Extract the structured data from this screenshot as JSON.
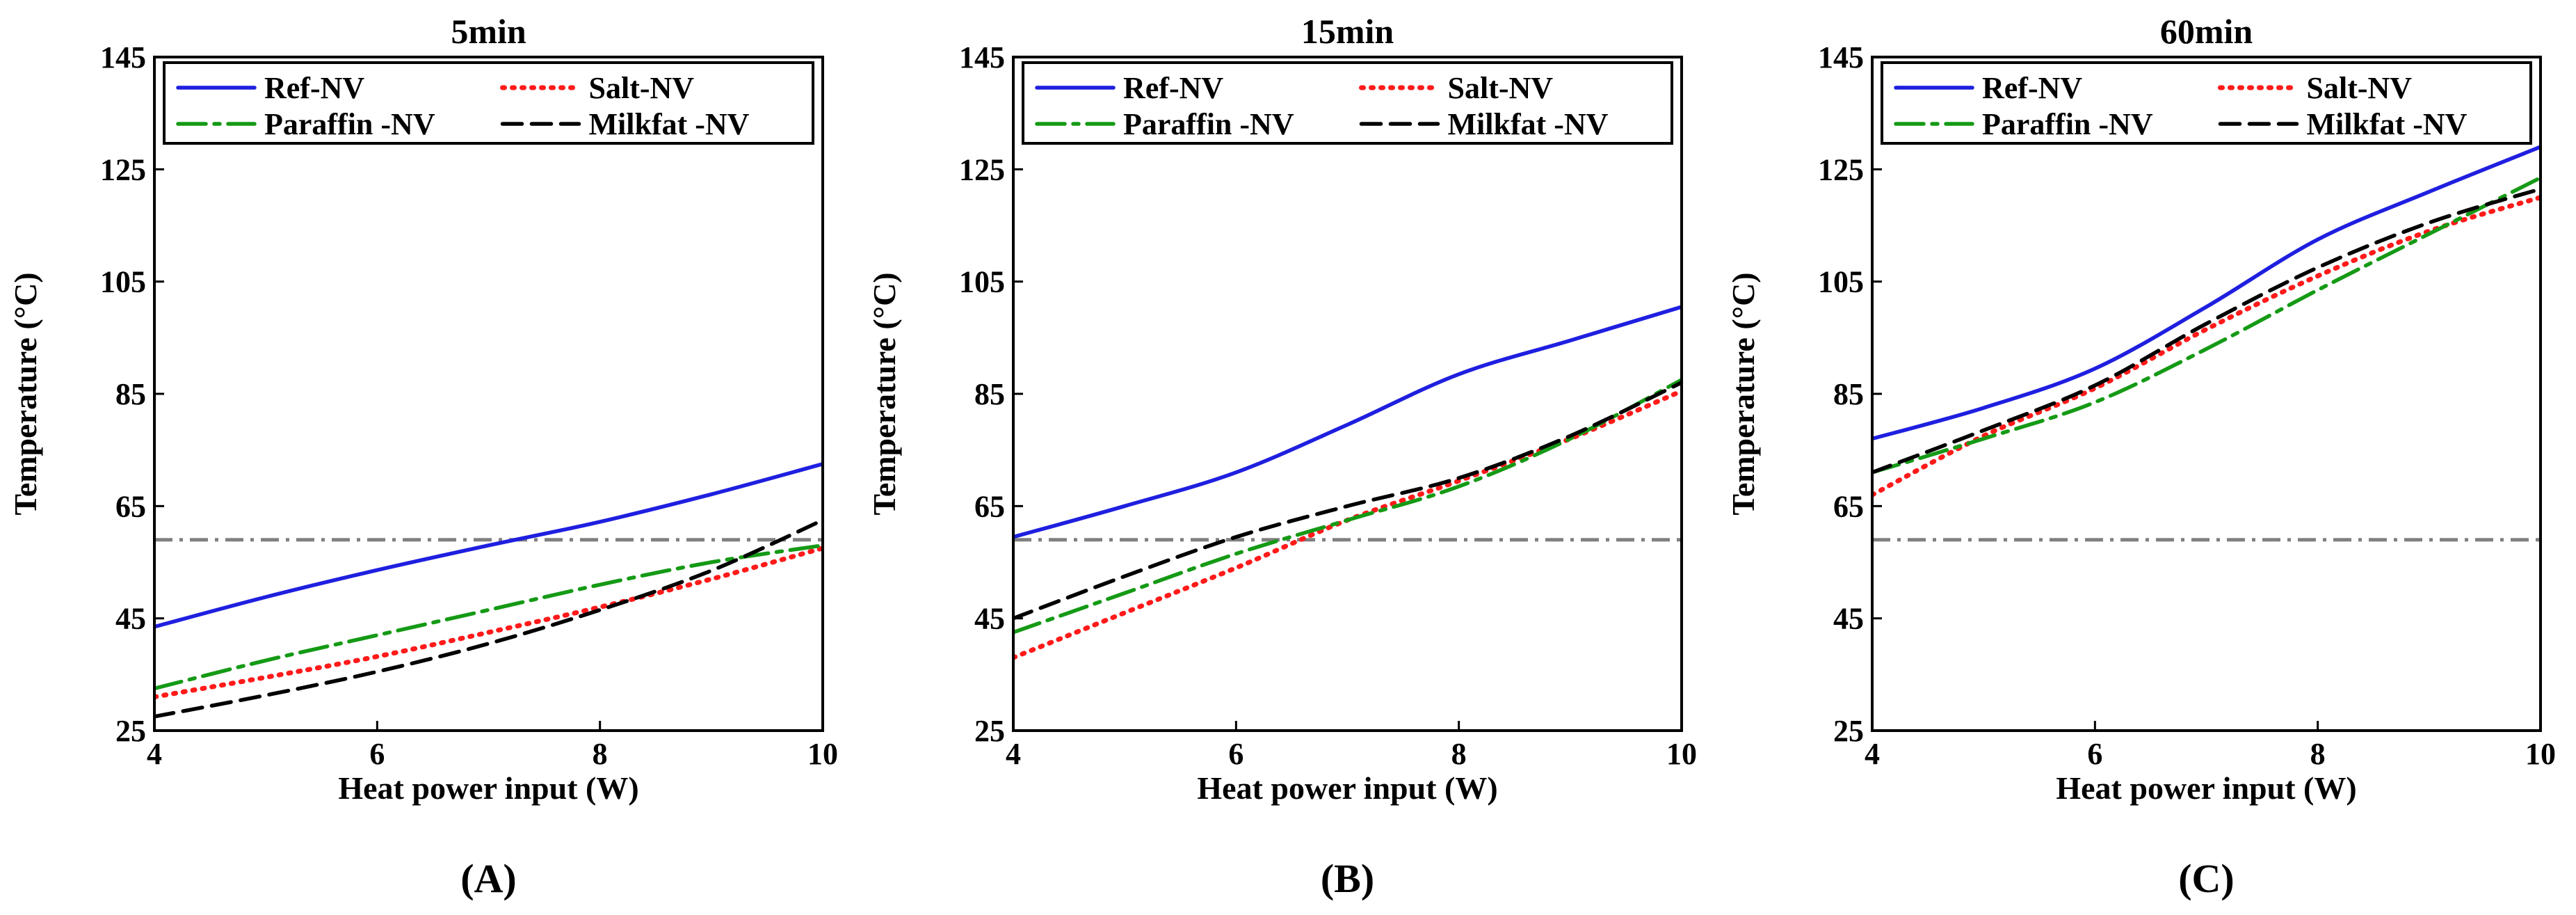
{
  "chart_data": [
    {
      "type": "line",
      "title": "5min",
      "panel_label": "(A)",
      "xlabel": "Heat power input (W)",
      "ylabel": "Temperature (°C)",
      "xlim": [
        4,
        10
      ],
      "ylim": [
        25,
        145
      ],
      "xticks": [
        4,
        6,
        8,
        10
      ],
      "yticks": [
        25,
        45,
        65,
        85,
        105,
        125,
        145
      ],
      "reference_line": {
        "y": 59,
        "color": "#808080",
        "style": "dash-dot"
      },
      "legend": {
        "placement": "top",
        "columns": 2
      },
      "series": [
        {
          "name": "Ref-NV",
          "color": "#1f1fe0",
          "dash": "solid",
          "x": [
            4,
            5,
            6,
            7,
            8,
            9,
            10
          ],
          "values": [
            43.5,
            48.8,
            53.6,
            58.0,
            62.2,
            67.1,
            72.5
          ]
        },
        {
          "name": "Salt-NV",
          "color": "#ff1a1a",
          "dash": "dotted",
          "x": [
            4,
            5,
            6,
            7,
            8,
            9,
            10
          ],
          "values": [
            31.0,
            34.5,
            38.2,
            42.5,
            47.0,
            52.0,
            57.5
          ]
        },
        {
          "name": "Paraffin -NV",
          "color": "#159a15",
          "dash": "dashdot",
          "x": [
            4,
            5,
            6,
            7,
            8,
            9,
            10
          ],
          "values": [
            32.5,
            37.5,
            42.0,
            46.5,
            51.0,
            55.0,
            58.0
          ]
        },
        {
          "name": "Milkfat -NV",
          "color": "#000000",
          "dash": "dashed",
          "x": [
            4,
            5,
            6,
            7,
            8,
            9,
            10
          ],
          "values": [
            27.5,
            31.3,
            35.5,
            40.5,
            46.5,
            53.5,
            62.5
          ]
        }
      ]
    },
    {
      "type": "line",
      "title": "15min",
      "panel_label": "(B)",
      "xlabel": "Heat power input (W)",
      "ylabel": "Temperature (°C)",
      "xlim": [
        4,
        10
      ],
      "ylim": [
        25,
        145
      ],
      "xticks": [
        4,
        6,
        8,
        10
      ],
      "yticks": [
        25,
        45,
        65,
        85,
        105,
        125,
        145
      ],
      "reference_line": {
        "y": 59,
        "color": "#808080",
        "style": "dash-dot"
      },
      "legend": {
        "placement": "top",
        "columns": 2
      },
      "series": [
        {
          "name": "Ref-NV",
          "color": "#1f1fe0",
          "dash": "solid",
          "x": [
            4,
            5,
            6,
            7,
            8,
            9,
            10
          ],
          "values": [
            59.5,
            65.0,
            71.0,
            79.5,
            88.5,
            94.5,
            100.5
          ]
        },
        {
          "name": "Salt-NV",
          "color": "#ff1a1a",
          "dash": "dotted",
          "x": [
            4,
            5,
            6,
            7,
            8,
            9,
            10
          ],
          "values": [
            38.0,
            46.0,
            54.0,
            62.5,
            69.5,
            77.0,
            85.5
          ]
        },
        {
          "name": "Paraffin -NV",
          "color": "#159a15",
          "dash": "dashdot",
          "x": [
            4,
            5,
            6,
            7,
            8,
            9,
            10
          ],
          "values": [
            42.5,
            49.5,
            56.5,
            62.5,
            68.5,
            77.0,
            87.5
          ]
        },
        {
          "name": "Milkfat -NV",
          "color": "#000000",
          "dash": "dashed",
          "x": [
            4,
            5,
            6,
            7,
            8,
            9,
            10
          ],
          "values": [
            45.0,
            52.5,
            59.5,
            65.0,
            70.0,
            77.5,
            87.0
          ]
        }
      ]
    },
    {
      "type": "line",
      "title": "60min",
      "panel_label": "(C)",
      "xlabel": "Heat power input (W)",
      "ylabel": "Temperature (°C)",
      "xlim": [
        4,
        10
      ],
      "ylim": [
        25,
        145
      ],
      "xticks": [
        4,
        6,
        8,
        10
      ],
      "yticks": [
        25,
        45,
        65,
        85,
        105,
        125,
        145
      ],
      "reference_line": {
        "y": 59,
        "color": "#808080",
        "style": "dash-dot"
      },
      "legend": {
        "placement": "top",
        "columns": 2
      },
      "series": [
        {
          "name": "Ref-NV",
          "color": "#1f1fe0",
          "dash": "solid",
          "x": [
            4,
            5,
            6,
            7,
            8,
            9,
            10
          ],
          "values": [
            77.0,
            82.5,
            89.5,
            100.5,
            112.5,
            121.0,
            129.0
          ]
        },
        {
          "name": "Salt-NV",
          "color": "#ff1a1a",
          "dash": "dotted",
          "x": [
            4,
            5,
            6,
            7,
            8,
            9,
            10
          ],
          "values": [
            67.0,
            77.5,
            86.0,
            96.5,
            106.0,
            114.0,
            120.0
          ]
        },
        {
          "name": "Paraffin -NV",
          "color": "#159a15",
          "dash": "dashdot",
          "x": [
            4,
            5,
            6,
            7,
            8,
            9,
            10
          ],
          "values": [
            71.0,
            77.0,
            83.5,
            93.0,
            103.5,
            113.5,
            123.5
          ]
        },
        {
          "name": "Milkfat -NV",
          "color": "#000000",
          "dash": "dashed",
          "x": [
            4,
            5,
            6,
            7,
            8,
            9,
            10
          ],
          "values": [
            71.0,
            78.5,
            86.5,
            97.5,
            107.5,
            115.5,
            121.5
          ]
        }
      ]
    }
  ]
}
